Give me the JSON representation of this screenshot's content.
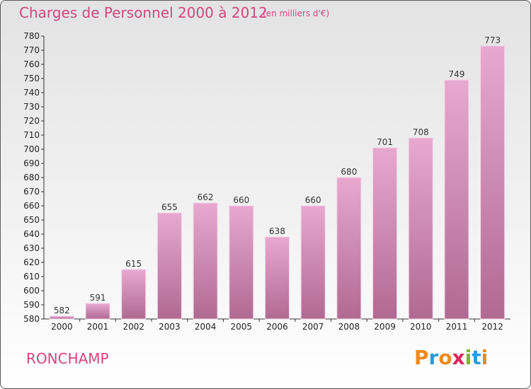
{
  "header": {
    "title": "Charges de Personnel 2000 à 2012",
    "subtitle": "(en milliers d'€)"
  },
  "commune": "RONCHAMP",
  "logo": {
    "text": "Proxiti",
    "letters": [
      {
        "ch": "P",
        "color": "#f08a1c"
      },
      {
        "ch": "r",
        "color": "#2a9bd6"
      },
      {
        "ch": "o",
        "color": "#f08a1c"
      },
      {
        "ch": "x",
        "color": "#e0245e"
      },
      {
        "ch": "i",
        "color": "#7ab829"
      },
      {
        "ch": "t",
        "color": "#2a9bd6"
      },
      {
        "ch": "i",
        "color": "#f08a1c"
      }
    ]
  },
  "colors": {
    "title": "#d0477f",
    "bar_top": "#e8a8d0",
    "bar_bottom": "#b06a92"
  },
  "chart_data": {
    "type": "bar",
    "title": "Charges de Personnel 2000 à 2012",
    "subtitle": "(en milliers d'€)",
    "categories": [
      "2000",
      "2001",
      "2002",
      "2003",
      "2004",
      "2005",
      "2006",
      "2007",
      "2008",
      "2009",
      "2010",
      "2011",
      "2012"
    ],
    "values": [
      582,
      591,
      615,
      655,
      662,
      660,
      638,
      660,
      680,
      701,
      708,
      749,
      773
    ],
    "ylim": [
      580,
      780
    ],
    "ytick_step": 10,
    "grid": false,
    "data_labels": true
  }
}
